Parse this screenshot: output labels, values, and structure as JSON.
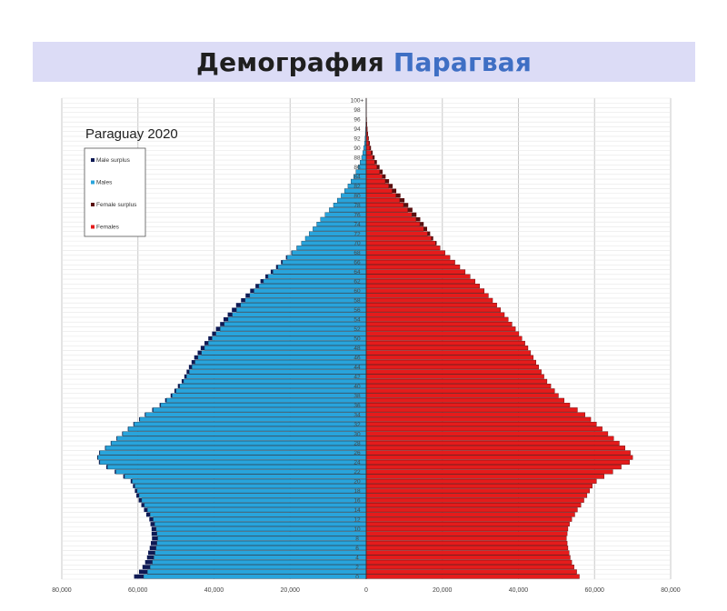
{
  "header": {
    "title_main": "Демография",
    "title_accent": "Парагвая"
  },
  "chart_data": {
    "type": "bar",
    "orientation": "horizontal-population-pyramid",
    "title": "Paraguay 2020",
    "legend": [
      "Male surplus",
      "Males",
      "Female surplus",
      "Females"
    ],
    "legend_position": "top-left",
    "colors": {
      "male": "#28a4dc",
      "male_surplus": "#0e1a55",
      "female": "#e51b1b",
      "female_surplus": "#5a0f0f"
    },
    "x_axis": {
      "min": -80000,
      "max": 80000,
      "tick_labels": [
        "80,000",
        "60,000",
        "40,000",
        "20,000",
        "0",
        "20,000",
        "40,000",
        "60,000",
        "80,000"
      ]
    },
    "y_axis": {
      "labels": [
        "0",
        "2",
        "4",
        "6",
        "8",
        "10",
        "12",
        "14",
        "16",
        "18",
        "20",
        "22",
        "24",
        "26",
        "28",
        "30",
        "32",
        "34",
        "36",
        "38",
        "40",
        "42",
        "44",
        "46",
        "48",
        "50",
        "52",
        "54",
        "56",
        "58",
        "60",
        "62",
        "64",
        "66",
        "68",
        "70",
        "72",
        "74",
        "76",
        "78",
        "80",
        "82",
        "84",
        "86",
        "88",
        "90",
        "92",
        "94",
        "96",
        "98",
        "100+"
      ]
    },
    "grid": true,
    "ages": [
      0,
      1,
      2,
      3,
      4,
      5,
      6,
      7,
      8,
      9,
      10,
      11,
      12,
      13,
      14,
      15,
      16,
      17,
      18,
      19,
      20,
      21,
      22,
      23,
      24,
      25,
      26,
      27,
      28,
      29,
      30,
      31,
      32,
      33,
      34,
      35,
      36,
      37,
      38,
      39,
      40,
      41,
      42,
      43,
      44,
      45,
      46,
      47,
      48,
      49,
      50,
      51,
      52,
      53,
      54,
      55,
      56,
      57,
      58,
      59,
      60,
      61,
      62,
      63,
      64,
      65,
      66,
      67,
      68,
      69,
      70,
      71,
      72,
      73,
      74,
      75,
      76,
      77,
      78,
      79,
      80,
      81,
      82,
      83,
      84,
      85,
      86,
      87,
      88,
      89,
      90,
      91,
      92,
      93,
      94,
      95,
      96,
      97,
      98,
      99,
      100
    ],
    "males": [
      58500,
      57500,
      56800,
      56200,
      55800,
      55500,
      55200,
      55000,
      54800,
      55000,
      55200,
      55600,
      56000,
      56800,
      57500,
      58300,
      59000,
      59700,
      60200,
      60800,
      61500,
      63500,
      65800,
      68000,
      70000,
      70500,
      70000,
      68500,
      67000,
      65500,
      64000,
      62500,
      61000,
      59500,
      58000,
      56000,
      54000,
      52500,
      51000,
      50000,
      49000,
      48000,
      47200,
      46500,
      45800,
      45000,
      44200,
      43300,
      42500,
      41500,
      40500,
      39500,
      38400,
      37300,
      36300,
      35200,
      34100,
      33000,
      31800,
      30600,
      29500,
      28200,
      27000,
      25800,
      24500,
      23200,
      22000,
      20800,
      19500,
      18200,
      17000,
      16000,
      15000,
      14000,
      13000,
      12000,
      10800,
      9700,
      8600,
      7600,
      6600,
      5700,
      4800,
      4000,
      3300,
      2700,
      2100,
      1600,
      1200,
      900,
      650,
      450,
      320,
      220,
      150,
      100,
      60,
      40,
      25,
      15,
      10
    ],
    "male_surplus": [
      2500,
      2200,
      2000,
      1900,
      1800,
      1800,
      1700,
      1600,
      1500,
      1400,
      1200,
      1100,
      1000,
      1000,
      900,
      800,
      800,
      700,
      600,
      500,
      400,
      350,
      300,
      300,
      250,
      200,
      200,
      150,
      150,
      150,
      150,
      150,
      200,
      200,
      200,
      250,
      300,
      350,
      400,
      400,
      500,
      500,
      600,
      700,
      800,
      900,
      1000,
      1000,
      1000,
      1000,
      1000,
      1000,
      1100,
      1100,
      1200,
      1200,
      1200,
      1200,
      1100,
      1100,
      1000,
      900,
      800,
      700,
      600,
      500,
      400,
      300,
      200,
      100,
      0,
      0,
      0,
      0,
      0,
      0,
      0,
      0,
      0,
      0,
      0,
      0,
      0,
      0,
      0,
      0,
      0,
      0,
      0,
      0,
      0,
      0,
      0,
      0,
      0,
      0,
      0,
      0,
      0,
      0,
      0
    ],
    "females": [
      56000,
      55300,
      54600,
      54000,
      53600,
      53300,
      53000,
      52800,
      52600,
      52800,
      53000,
      53400,
      54000,
      54800,
      55500,
      56400,
      57200,
      58000,
      58700,
      59400,
      60500,
      62500,
      64800,
      67000,
      69200,
      70000,
      69400,
      68000,
      66500,
      65000,
      63500,
      62000,
      60500,
      59000,
      57500,
      55500,
      53500,
      52000,
      50500,
      49500,
      48500,
      47500,
      46700,
      46000,
      45300,
      44600,
      43900,
      43200,
      42500,
      41700,
      40900,
      40100,
      39200,
      38300,
      37300,
      36300,
      35300,
      34300,
      33200,
      32100,
      31000,
      29800,
      28600,
      27300,
      26000,
      24600,
      23300,
      22000,
      20700,
      19400,
      18200,
      17100,
      16100,
      15100,
      14100,
      13100,
      12000,
      10900,
      9800,
      8800,
      7800,
      6800,
      5900,
      5000,
      4200,
      3500,
      2800,
      2200,
      1700,
      1300,
      950,
      700,
      500,
      350,
      240,
      160,
      100,
      65,
      40,
      25,
      15
    ],
    "female_surplus": [
      0,
      0,
      0,
      0,
      0,
      0,
      0,
      0,
      0,
      0,
      0,
      0,
      0,
      0,
      0,
      0,
      0,
      0,
      0,
      0,
      0,
      0,
      0,
      0,
      0,
      0,
      0,
      0,
      0,
      0,
      0,
      0,
      0,
      0,
      0,
      0,
      0,
      0,
      0,
      0,
      0,
      0,
      0,
      0,
      0,
      0,
      0,
      0,
      0,
      0,
      0,
      0,
      0,
      0,
      0,
      0,
      0,
      0,
      0,
      0,
      0,
      0,
      0,
      0,
      0,
      0,
      0,
      0,
      0,
      0,
      300,
      500,
      700,
      900,
      1000,
      1100,
      1200,
      1250,
      1250,
      1250,
      1200,
      1100,
      1050,
      1000,
      900,
      800,
      700,
      600,
      500,
      400,
      300,
      250,
      180,
      130,
      90,
      60,
      40,
      25,
      15,
      10,
      5
    ]
  }
}
